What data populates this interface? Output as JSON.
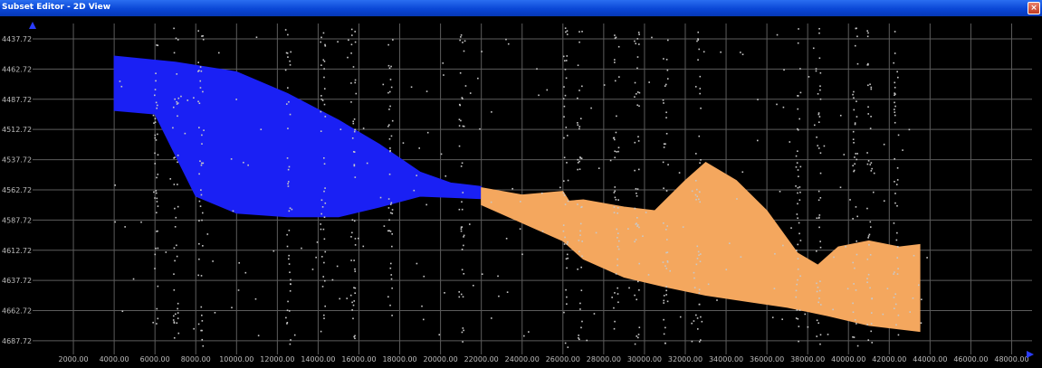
{
  "window": {
    "title": "Subset Editor - 2D View",
    "close_icon": "close-x-icon"
  },
  "colors": {
    "blue_set": "#1a20f4",
    "orange_set": "#f4a75e",
    "noise": "#c8c8c8",
    "grid": "#5c5c5c",
    "axis_text": "#bdbdbd",
    "axis_arrow": "#2a3cff"
  },
  "chart_data": {
    "type": "scatter",
    "title": "",
    "xlabel": "",
    "ylabel": "",
    "x_ticks": [
      "2000.00",
      "4000.00",
      "6000.00",
      "8000.00",
      "10000.00",
      "12000.00",
      "14000.00",
      "16000.00",
      "18000.00",
      "20000.00",
      "22000.00",
      "24000.00",
      "26000.00",
      "28000.00",
      "30000.00",
      "32000.00",
      "34000.00",
      "36000.00",
      "38000.00",
      "40000.00",
      "42000.00",
      "44000.00",
      "46000.00",
      "48000.00"
    ],
    "y_ticks": [
      "4437.72",
      "4462.72",
      "4487.72",
      "4512.72",
      "4537.72",
      "4562.72",
      "4587.72",
      "4612.72",
      "4637.72",
      "4662.72",
      "4687.72"
    ],
    "xlim": [
      0,
      49000
    ],
    "ylim": [
      4699,
      4425
    ],
    "y_inverted": true,
    "grid": true,
    "series": [
      {
        "color": "blue",
        "top": [
          [
            4000,
            4452
          ],
          [
            7000,
            4457
          ],
          [
            10000,
            4465
          ],
          [
            12500,
            4483
          ],
          [
            15000,
            4505
          ],
          [
            17000,
            4525
          ],
          [
            19000,
            4548
          ],
          [
            20500,
            4557
          ],
          [
            22000,
            4560
          ]
        ],
        "bottom": [
          [
            4000,
            4497
          ],
          [
            6000,
            4500
          ],
          [
            8000,
            4568
          ],
          [
            10000,
            4582
          ],
          [
            12500,
            4585
          ],
          [
            15000,
            4585
          ],
          [
            17000,
            4577
          ],
          [
            19000,
            4568
          ],
          [
            22000,
            4570
          ]
        ]
      },
      {
        "color": "orange",
        "top": [
          [
            22000,
            4561
          ],
          [
            24000,
            4567
          ],
          [
            26000,
            4564
          ],
          [
            26300,
            4572
          ],
          [
            27000,
            4571
          ],
          [
            29000,
            4577
          ],
          [
            30500,
            4580
          ],
          [
            32000,
            4555
          ],
          [
            33000,
            4540
          ],
          [
            34500,
            4555
          ],
          [
            36000,
            4580
          ],
          [
            37500,
            4615
          ],
          [
            38500,
            4625
          ],
          [
            39500,
            4610
          ],
          [
            41000,
            4605
          ],
          [
            42500,
            4610
          ],
          [
            43500,
            4608
          ]
        ],
        "bottom": [
          [
            22000,
            4575
          ],
          [
            24000,
            4590
          ],
          [
            26000,
            4605
          ],
          [
            27000,
            4620
          ],
          [
            29000,
            4635
          ],
          [
            31000,
            4643
          ],
          [
            33000,
            4650
          ],
          [
            35000,
            4655
          ],
          [
            37000,
            4660
          ],
          [
            39000,
            4667
          ],
          [
            41000,
            4675
          ],
          [
            43500,
            4680
          ]
        ]
      }
    ]
  }
}
